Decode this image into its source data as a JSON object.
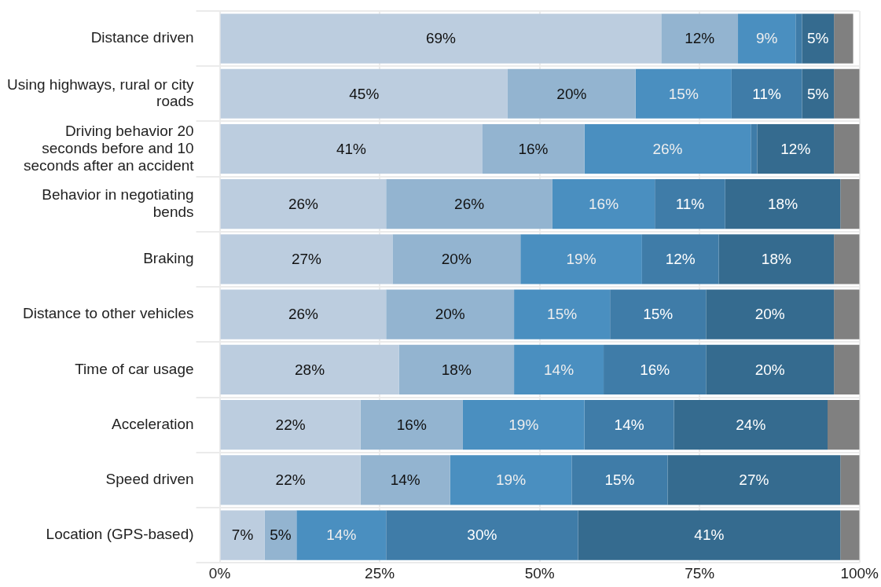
{
  "chart_data": {
    "type": "bar",
    "orientation": "horizontal",
    "stacked": true,
    "categories": [
      "Distance driven",
      "Using highways, rural or city roads",
      "Driving behavior 20 seconds before and 10 seconds after an accident",
      "Behavior in negotiating bends",
      "Braking",
      "Distance to other vehicles",
      "Time of car usage",
      "Acceleration",
      "Speed driven",
      "Location (GPS-based)"
    ],
    "series": [
      {
        "color": "#bccddf",
        "values": [
          69,
          45,
          41,
          26,
          27,
          26,
          28,
          22,
          22,
          7
        ],
        "value_labels": [
          "69%",
          "45%",
          "41%",
          "26%",
          "27%",
          "26%",
          "28%",
          "22%",
          "22%",
          "7%"
        ]
      },
      {
        "color": "#93b4d0",
        "values": [
          12,
          20,
          16,
          26,
          20,
          20,
          18,
          16,
          14,
          5
        ],
        "value_labels": [
          "12%",
          "20%",
          "16%",
          "26%",
          "20%",
          "20%",
          "18%",
          "16%",
          "14%",
          "5%"
        ]
      },
      {
        "color": "#4a8fc0",
        "values": [
          9,
          15,
          26,
          16,
          19,
          15,
          14,
          19,
          19,
          14
        ],
        "value_labels": [
          "9%",
          "15%",
          "26%",
          "16%",
          "19%",
          "15%",
          "14%",
          "19%",
          "19%",
          "14%"
        ]
      },
      {
        "color": "#3f7ca8",
        "values": [
          1,
          11,
          1,
          11,
          12,
          15,
          16,
          14,
          15,
          30
        ],
        "value_labels": [
          null,
          "11%",
          null,
          "11%",
          "12%",
          "15%",
          "16%",
          "14%",
          "15%",
          "30%"
        ]
      },
      {
        "color": "#356b8f",
        "values": [
          5,
          5,
          12,
          18,
          18,
          20,
          20,
          24,
          27,
          41
        ],
        "value_labels": [
          "5%",
          "5%",
          "12%",
          "18%",
          "18%",
          "20%",
          "20%",
          "24%",
          "27%",
          "41%"
        ]
      },
      {
        "color": "#808080",
        "values": [
          3,
          4,
          4,
          3,
          4,
          4,
          4,
          5,
          3,
          3
        ]
      }
    ],
    "xlim": [
      0,
      100
    ],
    "xticks": [
      {
        "value": 0,
        "label": "0%"
      },
      {
        "value": 25,
        "label": "25%"
      },
      {
        "value": 50,
        "label": "50%"
      },
      {
        "value": 75,
        "label": "75%"
      },
      {
        "value": 100,
        "label": "100%"
      }
    ],
    "grid": true,
    "legend": false
  }
}
